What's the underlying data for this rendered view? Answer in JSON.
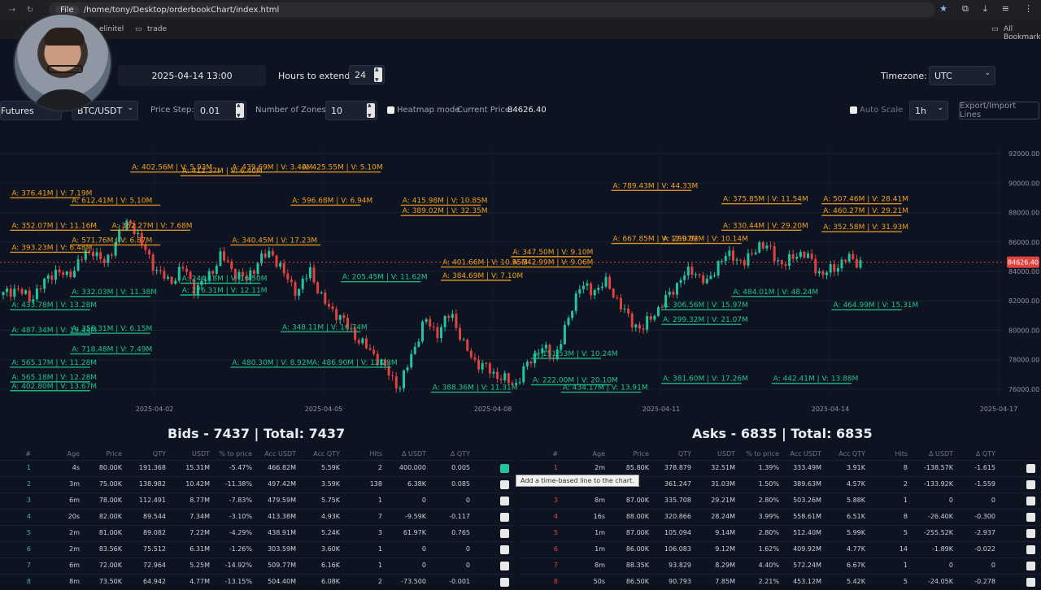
{
  "browser": {
    "url_proto": "File",
    "url": "/home/tony/Desktop/orderbookChart/index.html",
    "bookmark_1": "elinitel",
    "bookmark_2": "trade",
    "bookmark_all": "All Bookmarks"
  },
  "controls": {
    "date_value": "2025-04-14 13:00",
    "hours_label": "Hours to extend",
    "hours_value": "24",
    "timezone_label": "Timezone:",
    "timezone_value": "UTC",
    "market_value": "Futures",
    "symbol_value": "BTC/USDT",
    "price_step_label": "Price Step:",
    "price_step_value": "0.01",
    "zones_label": "Number of Zones:",
    "zones_value": "10",
    "heatmap_label": "Heatmap mode",
    "current_price_label": "Current Price:",
    "current_price_value": "84626.40",
    "auto_scale_label": "Auto Scale",
    "interval_value": "1h",
    "export_label": "Export/Import Lines"
  },
  "colors": {
    "bid": "#22c38e",
    "ask": "#f0a020",
    "up": "#23c3a0",
    "down": "#e0433f",
    "price_tag": "#e0433f"
  },
  "chart_data": {
    "type": "candlestick",
    "y_ticks": [
      "92000.00",
      "90000.00",
      "88000.00",
      "86000.00",
      "84000.00",
      "82000.00",
      "80000.00",
      "78000.00",
      "76000.00"
    ],
    "x_ticks": [
      "2025-04-02",
      "2025-04-05",
      "2025-04-08",
      "2025-04-11",
      "2025-04-14",
      "2025-04-17"
    ],
    "ylim": [
      75500,
      92500
    ],
    "current_price": "84626.40",
    "price_path": [
      82400,
      82900,
      82100,
      83000,
      84100,
      83600,
      84800,
      85500,
      84400,
      86600,
      87400,
      85500,
      84100,
      83200,
      84300,
      82800,
      83600,
      85100,
      84000,
      83400,
      84800,
      85300,
      83700,
      82600,
      84100,
      81900,
      81200,
      80200,
      79100,
      78400,
      77200,
      76100,
      78600,
      80700,
      79800,
      81300,
      78900,
      77800,
      77300,
      76700,
      76300,
      77700,
      78900,
      78100,
      80200,
      83100,
      82600,
      83300,
      82100,
      80600,
      80100,
      81300,
      82300,
      83600,
      84100,
      83100,
      84800,
      85100,
      84500,
      85900,
      85400,
      84300,
      85300,
      84900,
      83700,
      84300,
      84900,
      84626
    ],
    "ask_labels": [
      {
        "text": "A: 402.56M | V: 5.93M",
        "price": 90750,
        "from": 0.13,
        "to": 0.22
      },
      {
        "text": "A: 412.37M | V: 6.40M",
        "price": 90500,
        "from": 0.18,
        "to": 0.26
      },
      {
        "text": "A: 439.69M | V: 3.40M",
        "price": 90750,
        "from": 0.23,
        "to": 0.31
      },
      {
        "text": "A: 425.55M | V: 5.10M",
        "price": 90750,
        "from": 0.3,
        "to": 0.38
      },
      {
        "text": "A: 376.41M | V: 7.19M",
        "price": 89000,
        "from": 0.01,
        "to": 0.08
      },
      {
        "text": "A: 612.41M | V: 5.10M",
        "price": 88500,
        "from": 0.07,
        "to": 0.16
      },
      {
        "text": "A: 596.68M | V: 6.94M",
        "price": 88500,
        "from": 0.29,
        "to": 0.36
      },
      {
        "text": "A: 415.98M | V: 10.85M",
        "price": 88500,
        "from": 0.4,
        "to": 0.48
      },
      {
        "text": "A: 389.02M | V: 32.35M",
        "price": 87800,
        "from": 0.4,
        "to": 0.48
      },
      {
        "text": "A: 352.07M | V: 11.16M",
        "price": 86800,
        "from": 0.01,
        "to": 0.1
      },
      {
        "text": "A: 362.27M | V: 7.68M",
        "price": 86800,
        "from": 0.11,
        "to": 0.19
      },
      {
        "text": "A: 571.76M | V: 6.87M",
        "price": 85800,
        "from": 0.07,
        "to": 0.16
      },
      {
        "text": "A: 393.23M | V: 6.48M",
        "price": 85300,
        "from": 0.01,
        "to": 0.09
      },
      {
        "text": "A: 340.45M | V: 17.23M",
        "price": 85800,
        "from": 0.23,
        "to": 0.32
      },
      {
        "text": "A: 347.50M | V: 9.10M",
        "price": 85000,
        "from": 0.51,
        "to": 0.59
      },
      {
        "text": "A: 342.99M | V: 9.06M",
        "price": 84300,
        "from": 0.51,
        "to": 0.59
      },
      {
        "text": "A: 401.66M | V: 10.55M",
        "price": 84300,
        "from": 0.44,
        "to": 0.51
      },
      {
        "text": "A: 384.69M | V: 7.10M",
        "price": 83400,
        "from": 0.44,
        "to": 0.51
      },
      {
        "text": "A: 789.43M | V: 44.33M",
        "price": 89500,
        "from": 0.61,
        "to": 0.69
      },
      {
        "text": "A: 375.85M | V: 11.54M",
        "price": 88600,
        "from": 0.72,
        "to": 0.8
      },
      {
        "text": "A: 507.46M | V: 28.41M",
        "price": 88600,
        "from": 0.82,
        "to": 0.9
      },
      {
        "text": "A: 460.27M | V: 29.21M",
        "price": 87800,
        "from": 0.82,
        "to": 0.9
      },
      {
        "text": "A: 330.44M | V: 29.20M",
        "price": 86800,
        "from": 0.72,
        "to": 0.8
      },
      {
        "text": "A: 352.58M | V: 31.93M",
        "price": 86700,
        "from": 0.82,
        "to": 0.9
      },
      {
        "text": "A: 667.85M | V: 12.07M",
        "price": 85900,
        "from": 0.61,
        "to": 0.69
      },
      {
        "text": "A: 299.82M | V: 10.14M",
        "price": 85900,
        "from": 0.66,
        "to": 0.74
      }
    ],
    "bid_labels": [
      {
        "text": "A: 433.78M | V: 13.28M",
        "price": 81400,
        "from": 0.01,
        "to": 0.09
      },
      {
        "text": "A: 332.03M | V: 11.38M",
        "price": 82300,
        "from": 0.07,
        "to": 0.15
      },
      {
        "text": "A: 358.31M | V: 6.15M",
        "price": 79800,
        "from": 0.07,
        "to": 0.15
      },
      {
        "text": "A: 487.34M | V: 19.44M",
        "price": 79700,
        "from": 0.01,
        "to": 0.09
      },
      {
        "text": "A: 718.48M | V: 7.49M",
        "price": 78400,
        "from": 0.07,
        "to": 0.15
      },
      {
        "text": "A: 565.17M | V: 11.28M",
        "price": 77500,
        "from": 0.01,
        "to": 0.09
      },
      {
        "text": "A: 565.18M | V: 12.28M",
        "price": 76500,
        "from": 0.01,
        "to": 0.09
      },
      {
        "text": "A: 402.80M | V: 13.67M",
        "price": 75900,
        "from": 0.01,
        "to": 0.09
      },
      {
        "text": "A: 480.30M | V: 8.92M",
        "price": 77500,
        "from": 0.23,
        "to": 0.31
      },
      {
        "text": "A: 486.90M | V: 12.28M",
        "price": 77500,
        "from": 0.31,
        "to": 0.39
      },
      {
        "text": "A: 348.11M | V: 16.74M",
        "price": 79900,
        "from": 0.28,
        "to": 0.36
      },
      {
        "text": "A: 244.18M | V: 16.50M",
        "price": 83200,
        "from": 0.18,
        "to": 0.26
      },
      {
        "text": "A: 276.31M | V: 12.11M",
        "price": 82400,
        "from": 0.18,
        "to": 0.26
      },
      {
        "text": "A: 205.45M | V: 11.62M",
        "price": 83300,
        "from": 0.34,
        "to": 0.42
      },
      {
        "text": "A: 151.53M | V: 10.24M",
        "price": 78100,
        "from": 0.53,
        "to": 0.6
      },
      {
        "text": "A: 222.00M | V: 20.10M",
        "price": 76300,
        "from": 0.53,
        "to": 0.61
      },
      {
        "text": "A: 388.36M | V: 11.31M",
        "price": 75800,
        "from": 0.43,
        "to": 0.51
      },
      {
        "text": "A: 434.17M | V: 13.91M",
        "price": 75800,
        "from": 0.56,
        "to": 0.64
      },
      {
        "text": "A: 306.56M | V: 15.97M",
        "price": 81400,
        "from": 0.66,
        "to": 0.74
      },
      {
        "text": "A: 299.32M | V: 21.07M",
        "price": 80400,
        "from": 0.66,
        "to": 0.74
      },
      {
        "text": "A: 484.01M | V: 48.24M",
        "price": 82300,
        "from": 0.73,
        "to": 0.81
      },
      {
        "text": "A: 464.99M | V: 15.31M",
        "price": 81400,
        "from": 0.83,
        "to": 0.9
      },
      {
        "text": "A: 381.60M | V: 17.26M",
        "price": 76400,
        "from": 0.66,
        "to": 0.74
      },
      {
        "text": "A: 442.41M | V: 13.88M",
        "price": 76400,
        "from": 0.77,
        "to": 0.85
      }
    ]
  },
  "bids": {
    "title": "Bids - 7437 | Total: 7437",
    "columns": [
      "#",
      "Age",
      "Price",
      "QTY",
      "USDT",
      "% to price",
      "Acc USDT",
      "Acc QTY",
      "Hits",
      "Δ USDT",
      "Δ QTY"
    ],
    "rows": [
      [
        "1",
        "4s",
        "80.00K",
        "191.368",
        "15.31M",
        "-5.47%",
        "466.82M",
        "5.59K",
        "2",
        "400.000",
        "0.005"
      ],
      [
        "2",
        "3m",
        "75.00K",
        "138.982",
        "10.42M",
        "-11.38%",
        "497.42M",
        "3.59K",
        "138",
        "6.38K",
        "0.085"
      ],
      [
        "3",
        "6m",
        "78.00K",
        "112.491",
        "8.77M",
        "-7.83%",
        "479.59M",
        "5.75K",
        "1",
        "0",
        "0"
      ],
      [
        "4",
        "20s",
        "82.00K",
        "89.544",
        "7.34M",
        "-3.10%",
        "413.38M",
        "4.93K",
        "7",
        "-9.59K",
        "-0.117"
      ],
      [
        "5",
        "2m",
        "81.00K",
        "89.082",
        "7.22M",
        "-4.29%",
        "438.91M",
        "5.24K",
        "3",
        "61.97K",
        "0.765"
      ],
      [
        "6",
        "2m",
        "83.56K",
        "75.512",
        "6.31M",
        "-1.26%",
        "303.59M",
        "3.60K",
        "1",
        "0",
        "0"
      ],
      [
        "7",
        "6m",
        "72.00K",
        "72.964",
        "5.25M",
        "-14.92%",
        "509.77M",
        "6.16K",
        "1",
        "0",
        "0"
      ],
      [
        "8",
        "8m",
        "73.50K",
        "64.942",
        "4.77M",
        "-13.15%",
        "504.40M",
        "6.08K",
        "2",
        "-73.500",
        "-0.001"
      ]
    ]
  },
  "asks": {
    "title": "Asks - 6835 | Total: 6835",
    "columns": [
      "#",
      "Age",
      "Price",
      "QTY",
      "USDT",
      "% to price",
      "Acc USDT",
      "Acc QTY",
      "Hits",
      "Δ USDT",
      "Δ QTY"
    ],
    "rows": [
      [
        "1",
        "2m",
        "85.80K",
        "378.879",
        "32.51M",
        "1.39%",
        "333.49M",
        "3.91K",
        "8",
        "-138.57K",
        "-1.615"
      ],
      [
        "2",
        "",
        "",
        "361.247",
        "31.03M",
        "1.50%",
        "389.63M",
        "4.57K",
        "2",
        "-133.92K",
        "-1.559"
      ],
      [
        "3",
        "8m",
        "87.00K",
        "335.708",
        "29.21M",
        "2.80%",
        "503.26M",
        "5.88K",
        "1",
        "0",
        "0"
      ],
      [
        "4",
        "16s",
        "88.00K",
        "320.866",
        "28.24M",
        "3.99%",
        "558.61M",
        "6.51K",
        "8",
        "-26.40K",
        "-0.300"
      ],
      [
        "5",
        "1m",
        "87.00K",
        "105.094",
        "9.14M",
        "2.80%",
        "512.40M",
        "5.99K",
        "5",
        "-255.52K",
        "-2.937"
      ],
      [
        "6",
        "1m",
        "86.00K",
        "106.083",
        "9.12M",
        "1.62%",
        "409.92M",
        "4.77K",
        "14",
        "-1.89K",
        "-0.022"
      ],
      [
        "7",
        "8m",
        "88.35K",
        "93.829",
        "8.29M",
        "4.40%",
        "572.24M",
        "6.67K",
        "1",
        "0",
        "0"
      ],
      [
        "8",
        "50s",
        "86.50K",
        "90.793",
        "7.85M",
        "2.21%",
        "453.12M",
        "5.42K",
        "5",
        "-24.05K",
        "-0.278"
      ]
    ]
  },
  "tooltip": "Add a time-based line to the chart."
}
